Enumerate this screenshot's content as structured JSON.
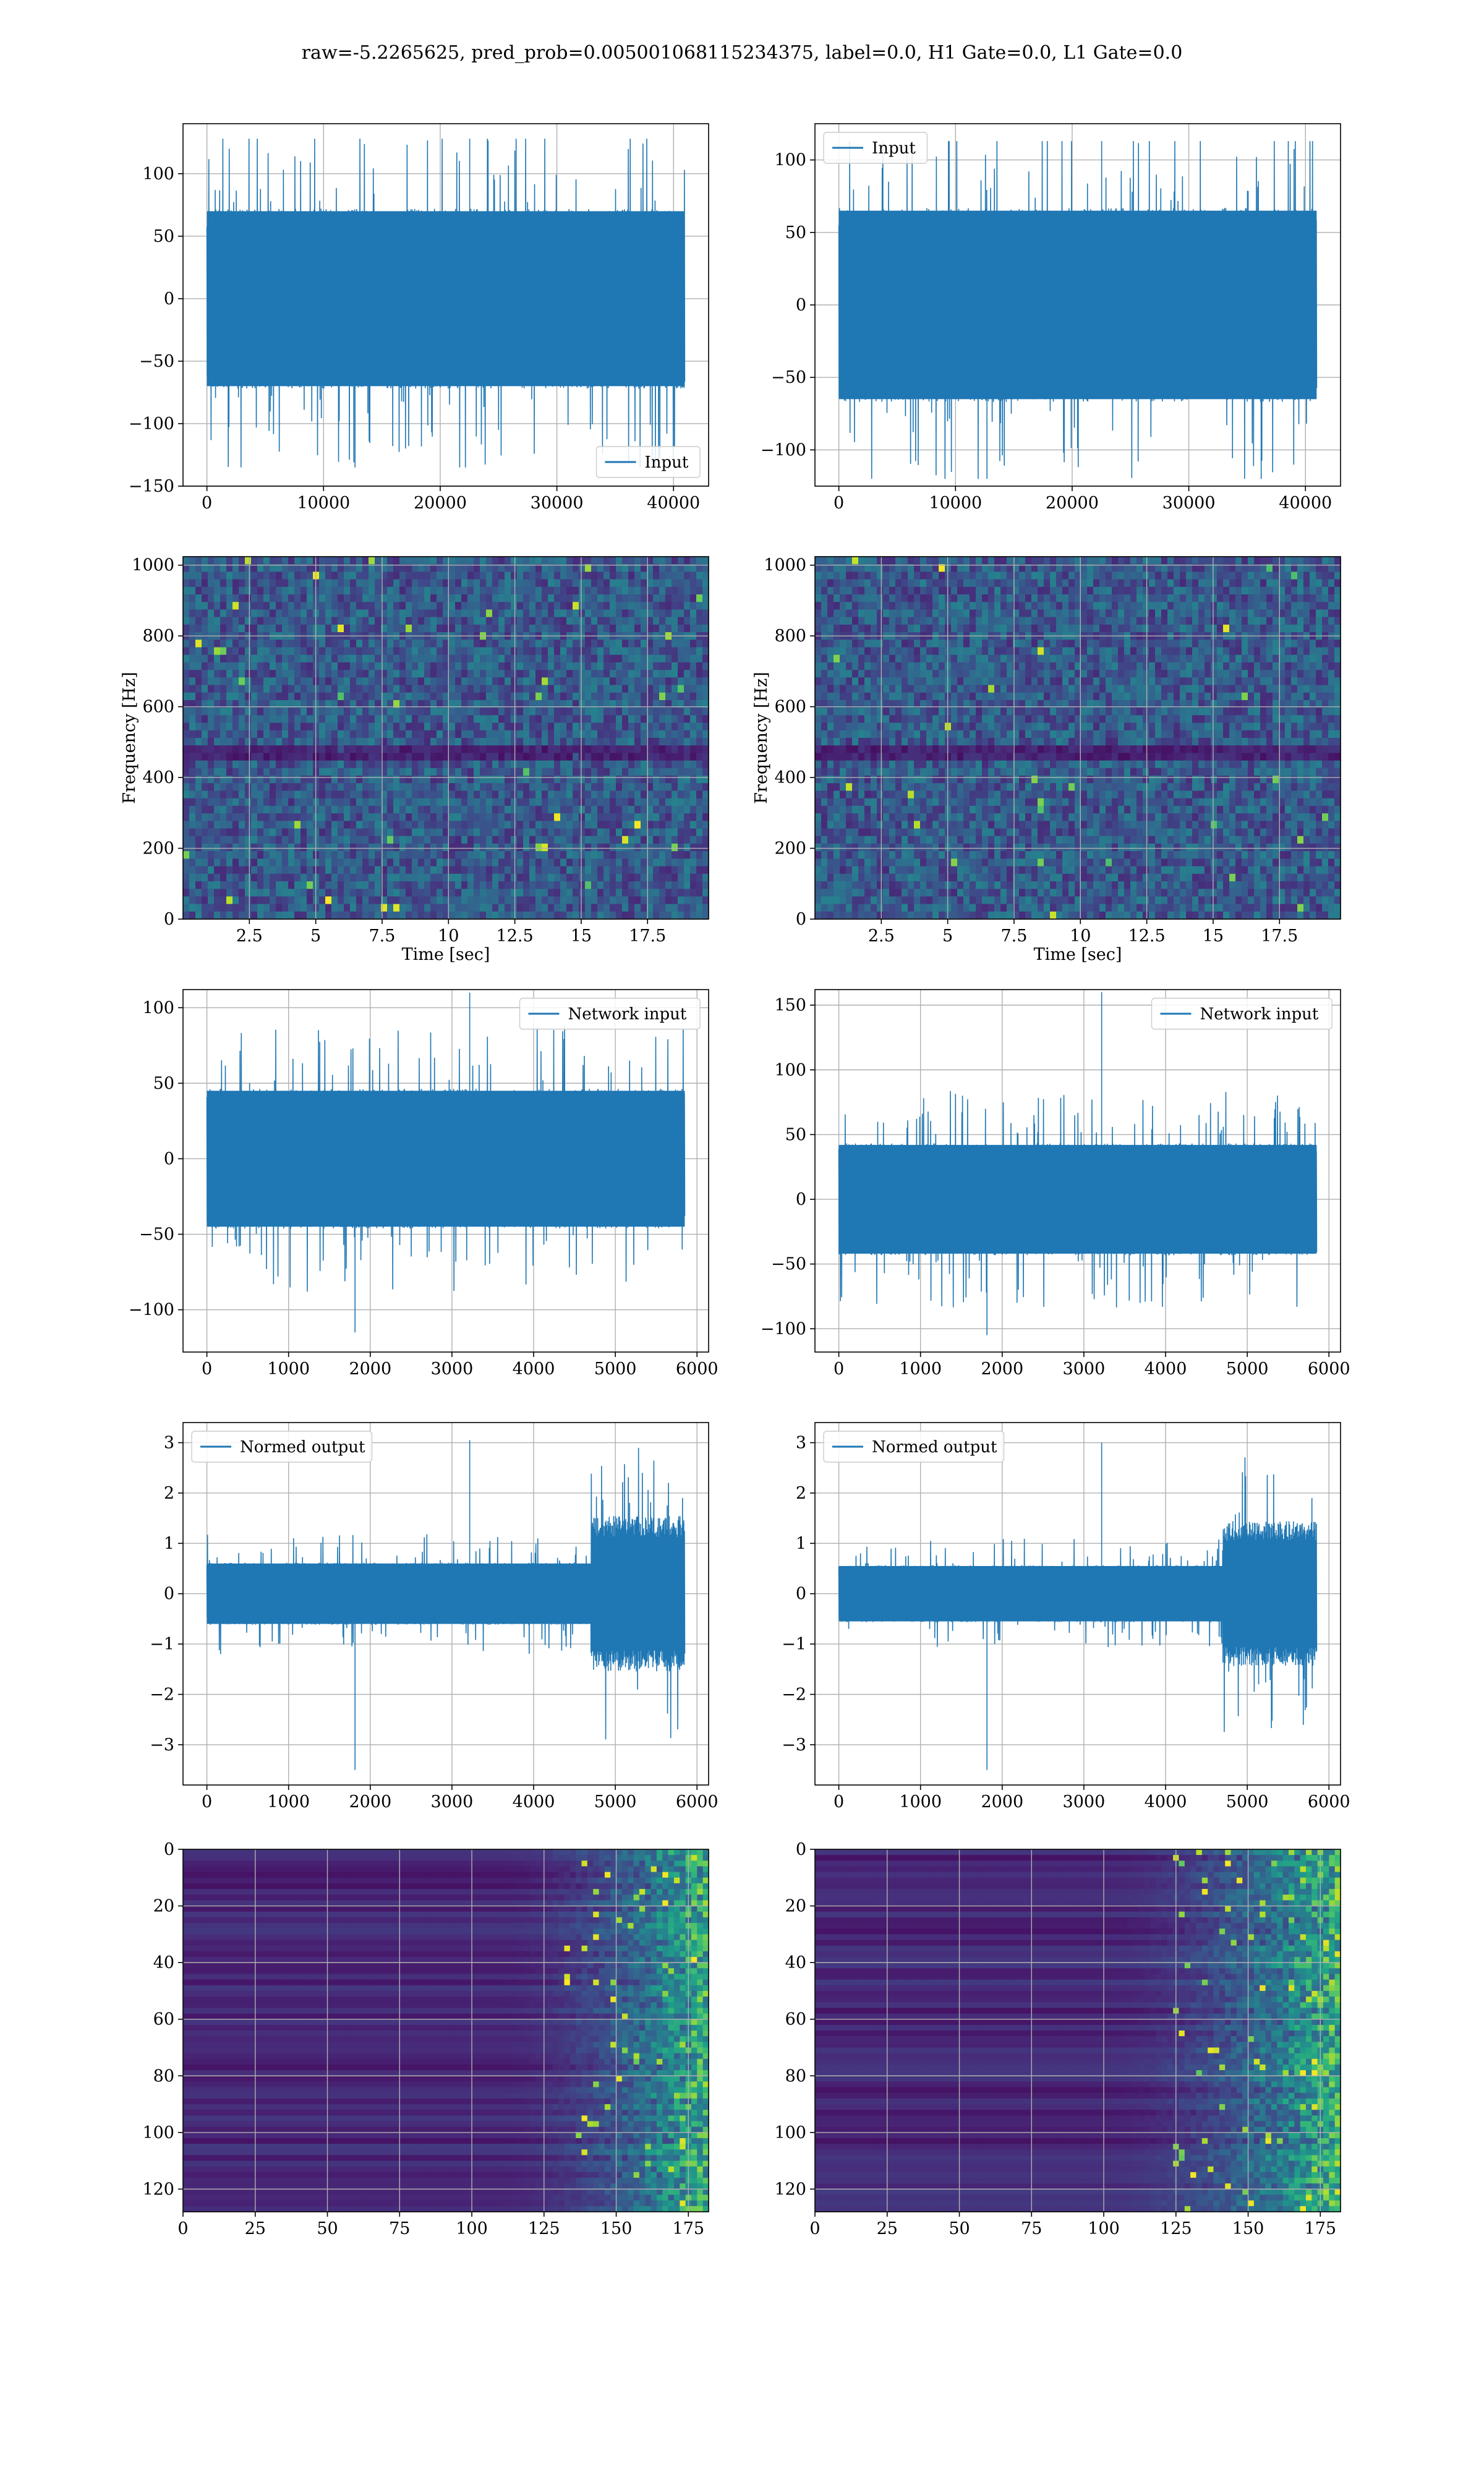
{
  "figure": {
    "title": "raw=-5.2265625, pred_prob=0.005001068115234375, label=0.0, H1 Gate=0.0, L1 Gate=0.0"
  },
  "colors": {
    "series": "#1f77b4",
    "grid": "#b0b0b0",
    "viridis_dark": "#440154"
  },
  "chart_data": [
    {
      "id": "h1-input",
      "type": "line",
      "x_range": [
        0,
        40960
      ],
      "y_envelope": [
        -70,
        70
      ],
      "xlim": [
        -2048,
        43008
      ],
      "ylim": [
        -150,
        140
      ],
      "xticks": [
        0,
        10000,
        20000,
        30000,
        40000
      ],
      "yticks": [
        -150,
        -100,
        -50,
        0,
        50,
        100
      ],
      "legend": {
        "label": "Input",
        "loc": "lower-right"
      },
      "series": [
        {
          "name": "Input",
          "peak_max": 128,
          "peak_min": -135
        }
      ],
      "grid": true,
      "xlabel": "",
      "ylabel": ""
    },
    {
      "id": "l1-input",
      "type": "line",
      "x_range": [
        0,
        40960
      ],
      "y_envelope": [
        -65,
        65
      ],
      "xlim": [
        -2048,
        43008
      ],
      "ylim": [
        -125,
        125
      ],
      "xticks": [
        0,
        10000,
        20000,
        30000,
        40000
      ],
      "yticks": [
        -100,
        -50,
        0,
        50,
        100
      ],
      "legend": {
        "label": "Input",
        "loc": "upper-left"
      },
      "series": [
        {
          "name": "Input",
          "peak_max": 113,
          "peak_min": -120
        }
      ],
      "grid": true,
      "xlabel": "",
      "ylabel": ""
    },
    {
      "id": "h1-spectrogram",
      "type": "heatmap",
      "xlim": [
        0,
        19.8
      ],
      "ylim": [
        0,
        1024
      ],
      "xticks": [
        2.5,
        5.0,
        7.5,
        10.0,
        12.5,
        15.0,
        17.5
      ],
      "yticks": [
        0,
        200,
        400,
        600,
        800,
        1000
      ],
      "xlabel": "Time [sec]",
      "ylabel": "Frequency [Hz]",
      "colormap": "viridis",
      "grid": true
    },
    {
      "id": "l1-spectrogram",
      "type": "heatmap",
      "xlim": [
        0,
        19.8
      ],
      "ylim": [
        0,
        1024
      ],
      "xticks": [
        2.5,
        5.0,
        7.5,
        10.0,
        12.5,
        15.0,
        17.5
      ],
      "yticks": [
        0,
        200,
        400,
        600,
        800,
        1000
      ],
      "xlabel": "Time [sec]",
      "ylabel": "Frequency [Hz]",
      "colormap": "viridis",
      "grid": true
    },
    {
      "id": "h1-network-input",
      "type": "line",
      "x_range": [
        0,
        5850
      ],
      "y_envelope": [
        -45,
        45
      ],
      "xlim": [
        -292,
        6142
      ],
      "ylim": [
        -128,
        112
      ],
      "xticks": [
        0,
        1000,
        2000,
        3000,
        4000,
        5000,
        6000
      ],
      "yticks": [
        -100,
        -50,
        0,
        50,
        100
      ],
      "legend": {
        "label": "Network input",
        "loc": "upper-right"
      },
      "series": [
        {
          "name": "Network input",
          "peak_max": 110,
          "peak_min": -115
        }
      ],
      "grid": true,
      "xlabel": "",
      "ylabel": ""
    },
    {
      "id": "l1-network-input",
      "type": "line",
      "x_range": [
        0,
        5850
      ],
      "y_envelope": [
        -42,
        42
      ],
      "xlim": [
        -292,
        6142
      ],
      "ylim": [
        -118,
        162
      ],
      "xticks": [
        0,
        1000,
        2000,
        3000,
        4000,
        5000,
        6000
      ],
      "yticks": [
        -100,
        -50,
        0,
        50,
        100,
        150
      ],
      "legend": {
        "label": "Network input",
        "loc": "upper-right"
      },
      "series": [
        {
          "name": "Network input",
          "peak_max": 160,
          "peak_min": -105
        }
      ],
      "grid": true,
      "xlabel": "",
      "ylabel": ""
    },
    {
      "id": "h1-normed-output",
      "type": "line",
      "x_range": [
        0,
        5850
      ],
      "y_envelope": [
        -0.6,
        0.6
      ],
      "late_envelope": [
        -1.5,
        1.5
      ],
      "late_start": 4700,
      "xlim": [
        -292,
        6142
      ],
      "ylim": [
        -3.8,
        3.4
      ],
      "xticks": [
        0,
        1000,
        2000,
        3000,
        4000,
        5000,
        6000
      ],
      "yticks": [
        -3,
        -2,
        -1,
        0,
        1,
        2,
        3
      ],
      "legend": {
        "label": "Normed output",
        "loc": "upper-left"
      },
      "series": [
        {
          "name": "Normed output",
          "peak_max": 3.05,
          "peak_min": -3.5
        }
      ],
      "grid": true,
      "xlabel": "",
      "ylabel": ""
    },
    {
      "id": "l1-normed-output",
      "type": "line",
      "x_range": [
        0,
        5850
      ],
      "y_envelope": [
        -0.55,
        0.55
      ],
      "late_envelope": [
        -1.4,
        1.4
      ],
      "late_start": 4700,
      "xlim": [
        -292,
        6142
      ],
      "ylim": [
        -3.8,
        3.4
      ],
      "xticks": [
        0,
        1000,
        2000,
        3000,
        4000,
        5000,
        6000
      ],
      "yticks": [
        -3,
        -2,
        -1,
        0,
        1,
        2,
        3
      ],
      "legend": {
        "label": "Normed output",
        "loc": "upper-left"
      },
      "series": [
        {
          "name": "Normed output",
          "peak_max": 3.0,
          "peak_min": -3.5
        }
      ],
      "grid": true,
      "xlabel": "",
      "ylabel": ""
    },
    {
      "id": "h1-feature-map",
      "type": "heatmap",
      "xlim": [
        0,
        182
      ],
      "ylim": [
        128,
        0
      ],
      "xticks": [
        0,
        25,
        50,
        75,
        100,
        125,
        150,
        175
      ],
      "yticks": [
        0,
        20,
        40,
        60,
        80,
        100,
        120
      ],
      "colormap": "viridis",
      "grid": true,
      "activity_onset": 110
    },
    {
      "id": "l1-feature-map",
      "type": "heatmap",
      "xlim": [
        0,
        182
      ],
      "ylim": [
        128,
        0
      ],
      "xticks": [
        0,
        25,
        50,
        75,
        100,
        125,
        150,
        175
      ],
      "yticks": [
        0,
        20,
        40,
        60,
        80,
        100,
        120
      ],
      "colormap": "viridis",
      "grid": true,
      "activity_onset": 100
    }
  ]
}
